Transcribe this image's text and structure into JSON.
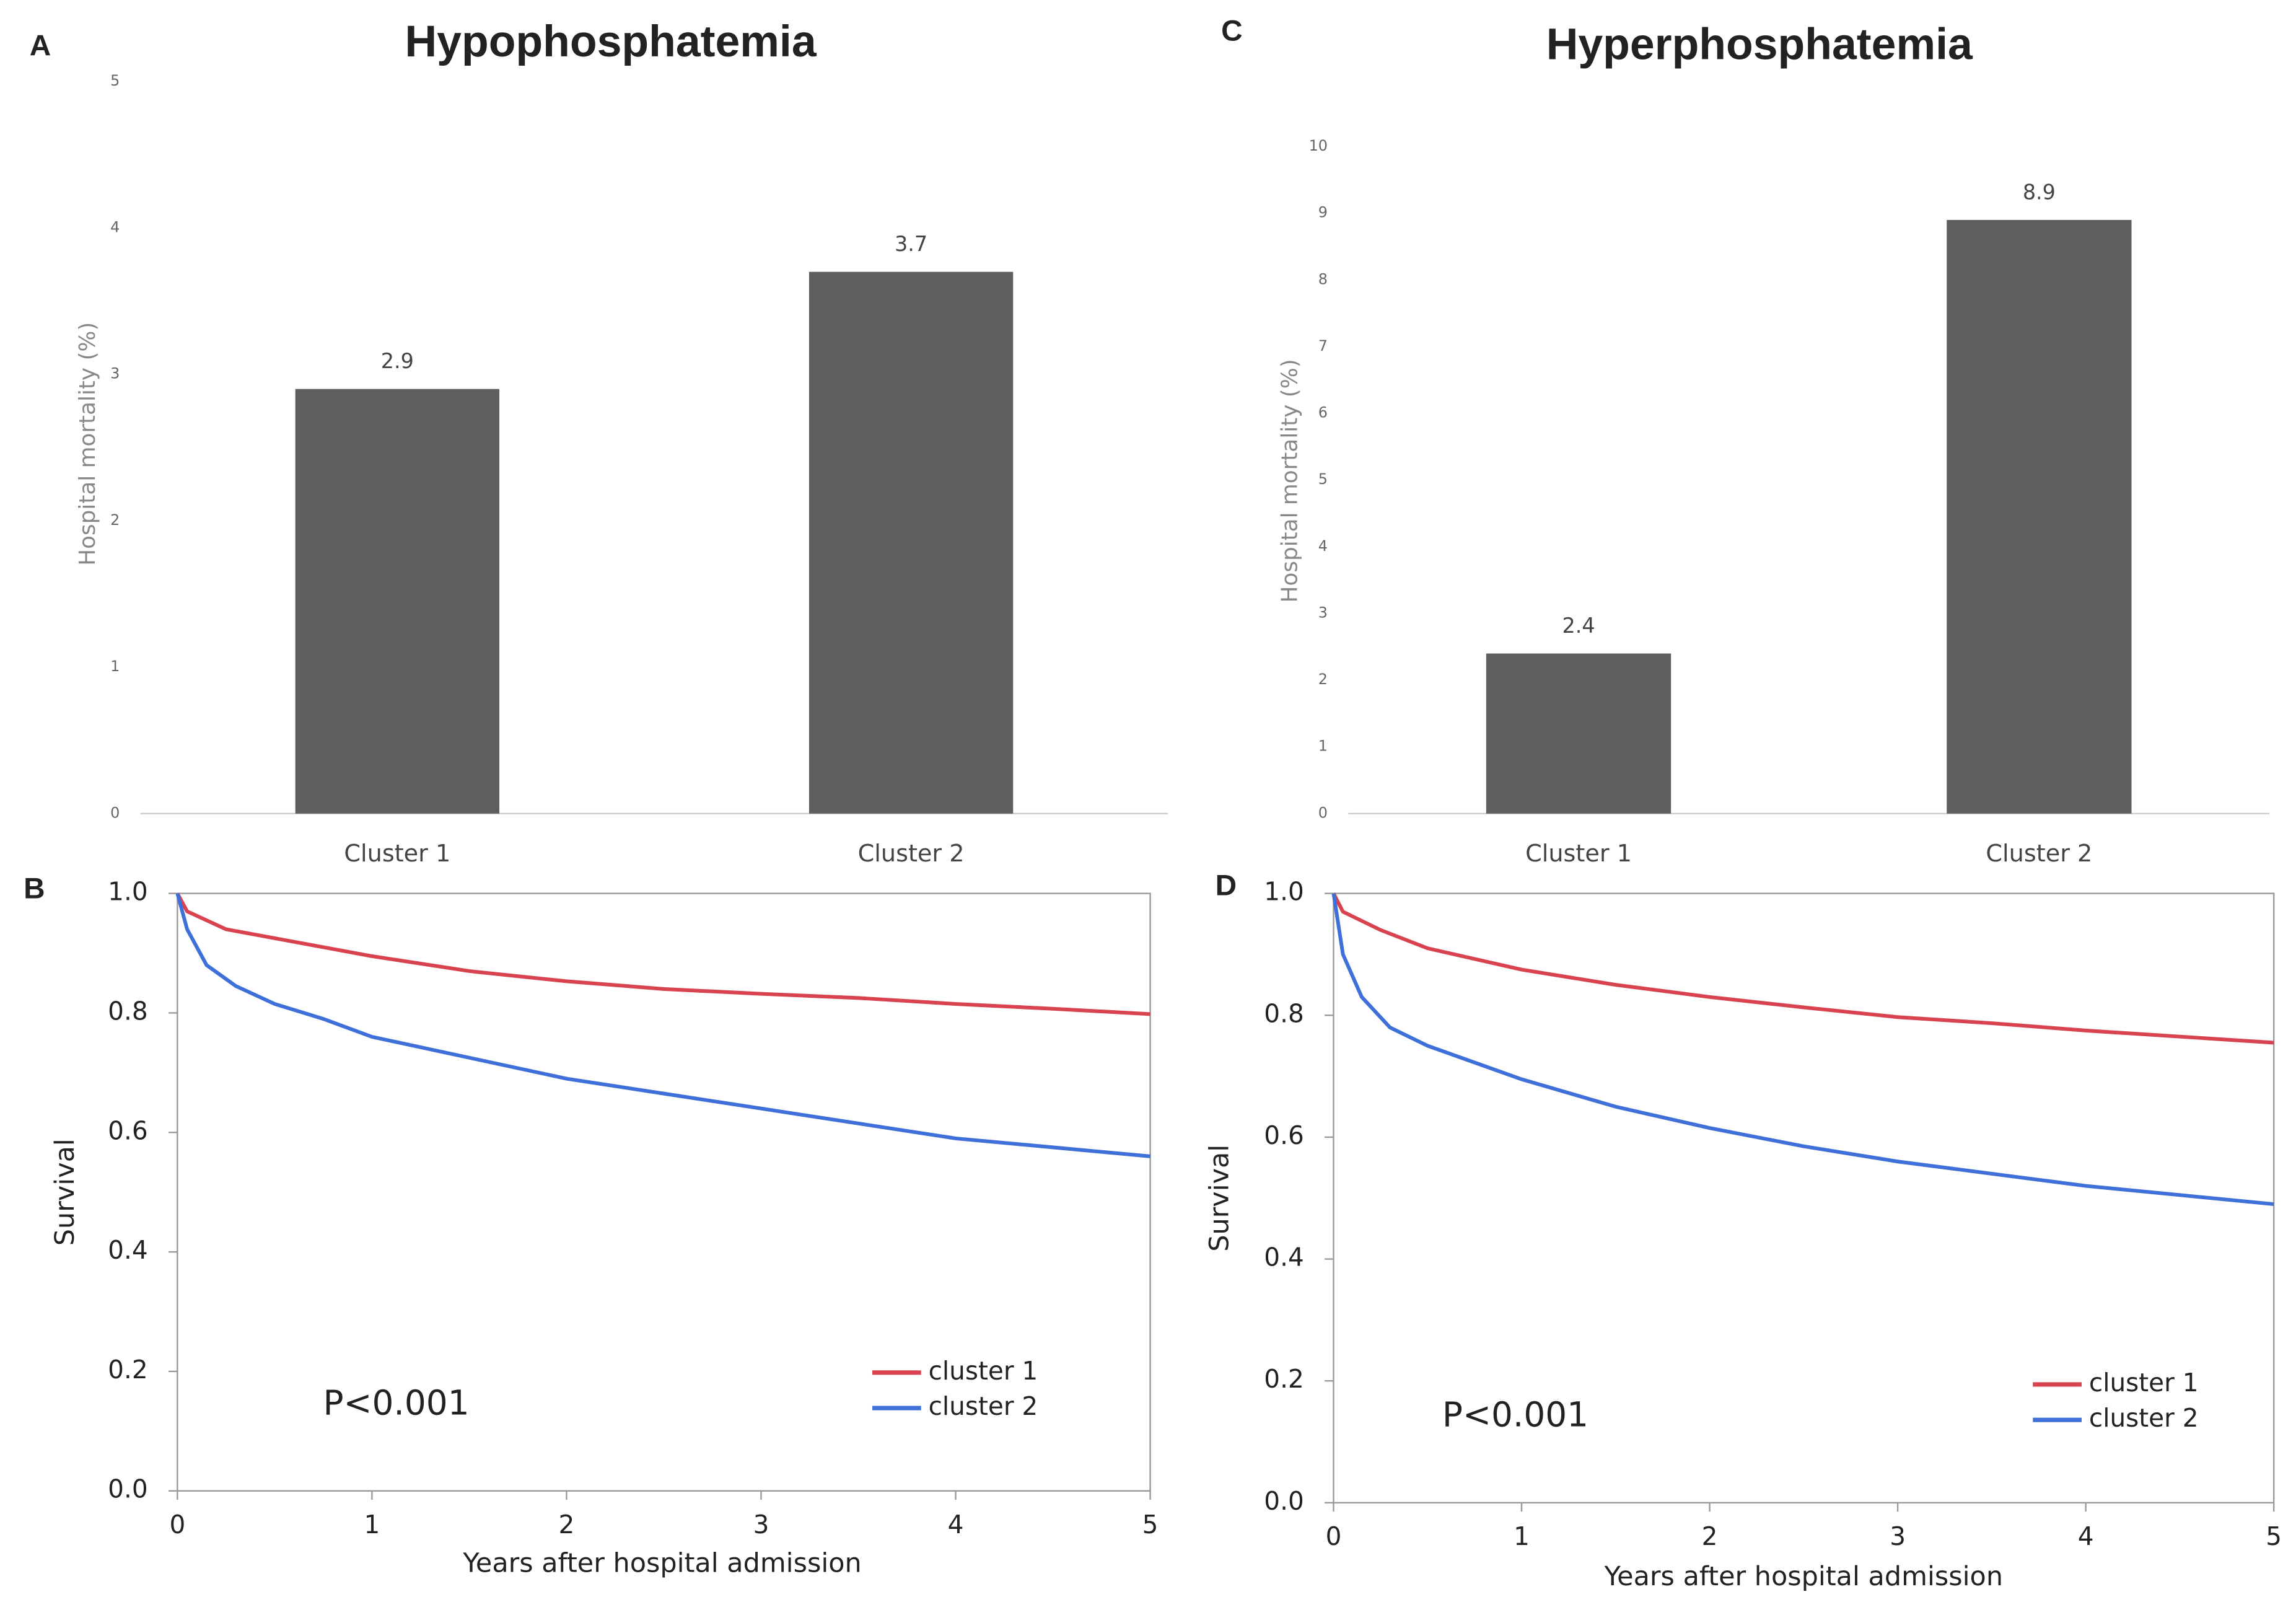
{
  "chart_data": [
    {
      "type": "bar",
      "panel": "A",
      "title": "Hypophosphatemia",
      "ylabel": "Hospital mortality (%)",
      "categories": [
        "Cluster 1",
        "Cluster 2"
      ],
      "values": [
        2.9,
        3.7
      ],
      "color": "#5e5e5e",
      "ylim": [
        0,
        5
      ],
      "yticks": [
        0,
        1,
        2,
        3,
        4,
        5
      ],
      "grid": false
    },
    {
      "type": "line",
      "panel": "B",
      "ylabel": "Survival",
      "xlabel": "Years after hospital admission",
      "annotation": "P<0.001",
      "series": [
        {
          "name": "cluster 1",
          "color": "#d9434f",
          "x": [
            0,
            0.05,
            0.25,
            0.5,
            1,
            1.5,
            2,
            2.5,
            3,
            3.5,
            4,
            4.5,
            5
          ],
          "values": [
            1,
            0.97,
            0.94,
            0.925,
            0.895,
            0.87,
            0.853,
            0.84,
            0.832,
            0.825,
            0.815,
            0.807,
            0.798
          ]
        },
        {
          "name": "cluster 2",
          "color": "#3f6fd8",
          "x": [
            0,
            0.05,
            0.15,
            0.3,
            0.5,
            0.75,
            1,
            1.5,
            2,
            2.5,
            3,
            3.5,
            4,
            4.5,
            5
          ],
          "values": [
            1,
            0.94,
            0.88,
            0.845,
            0.815,
            0.79,
            0.76,
            0.725,
            0.69,
            0.665,
            0.64,
            0.615,
            0.59,
            0.575,
            0.56
          ]
        }
      ],
      "xlim": [
        0,
        5
      ],
      "xticks": [
        0,
        1,
        2,
        3,
        4,
        5
      ],
      "ylim": [
        0,
        1
      ],
      "yticks": [
        {
          "value": 0,
          "label": "0.0"
        },
        0.2,
        0.4,
        0.6,
        0.8,
        {
          "value": 1,
          "label": "1.0"
        }
      ],
      "legend": "lower right",
      "grid": false
    },
    {
      "type": "bar",
      "panel": "C",
      "title": "Hyperphosphatemia",
      "ylabel": "Hospital mortality (%)",
      "categories": [
        "Cluster 1",
        "Cluster 2"
      ],
      "values": [
        2.4,
        8.9
      ],
      "color": "#5e5e5e",
      "ylim": [
        0,
        10
      ],
      "yticks": [
        0,
        1,
        2,
        3,
        4,
        5,
        6,
        7,
        8,
        9,
        10
      ],
      "grid": false
    },
    {
      "type": "line",
      "panel": "D",
      "ylabel": "Survival",
      "xlabel": "Years after hospital admission",
      "annotation": "P<0.001",
      "series": [
        {
          "name": "cluster 1",
          "color": "#d9434f",
          "x": [
            0,
            0.05,
            0.25,
            0.5,
            1,
            1.5,
            2,
            2.5,
            3,
            3.5,
            4,
            4.5,
            5
          ],
          "values": [
            1,
            0.97,
            0.94,
            0.91,
            0.875,
            0.85,
            0.83,
            0.813,
            0.797,
            0.787,
            0.775,
            0.765,
            0.755
          ]
        },
        {
          "name": "cluster 2",
          "color": "#3f6fd8",
          "x": [
            0,
            0.05,
            0.15,
            0.3,
            0.5,
            1,
            1.5,
            2,
            2.5,
            3,
            3.5,
            4,
            4.5,
            5
          ],
          "values": [
            1,
            0.9,
            0.83,
            0.78,
            0.75,
            0.695,
            0.65,
            0.615,
            0.585,
            0.56,
            0.54,
            0.52,
            0.505,
            0.49
          ]
        }
      ],
      "xlim": [
        0,
        5
      ],
      "xticks": [
        0,
        1,
        2,
        3,
        4,
        5
      ],
      "ylim": [
        0,
        1
      ],
      "yticks": [
        {
          "value": 0,
          "label": "0.0"
        },
        0.2,
        0.4,
        0.6,
        0.8,
        {
          "value": 1,
          "label": "1.0"
        }
      ],
      "legend": "lower right",
      "grid": false
    }
  ]
}
